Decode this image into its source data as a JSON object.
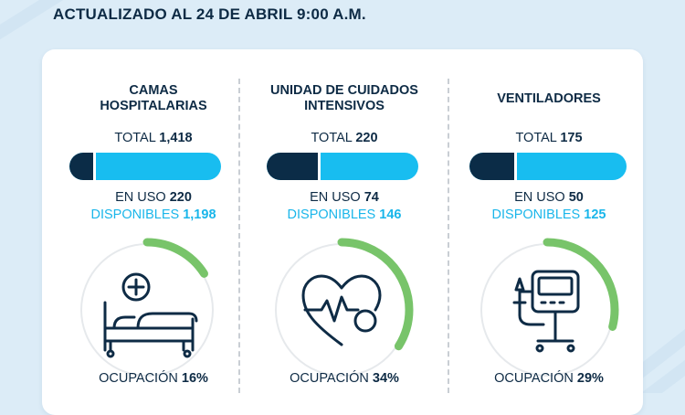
{
  "header": {
    "title": "ACTUALIZADO AL 24 DE ABRIL  9:00 A.M."
  },
  "colors": {
    "navy": "#0b2c47",
    "cyan": "#18bdf0",
    "green": "#78c46a",
    "gray": "#e6e9ec"
  },
  "columns": [
    {
      "title": "CAMAS HOSPITALARIAS",
      "total_label": "TOTAL",
      "total_value": "1,418",
      "inuse_label": "EN USO",
      "inuse_value": "220",
      "available_label": "DISPONIBLES",
      "available_value": "1,198",
      "used_fraction": 0.155,
      "occupancy_label": "OCUPACIÓN",
      "occupancy_value": "16%",
      "occupancy_fraction": 0.16,
      "icon": "hospital-bed-icon"
    },
    {
      "title": "UNIDAD DE CUIDADOS INTENSIVOS",
      "total_label": "TOTAL",
      "total_value": "220",
      "inuse_label": "EN USO",
      "inuse_value": "74",
      "available_label": "DISPONIBLES",
      "available_value": "146",
      "used_fraction": 0.336,
      "occupancy_label": "OCUPACIÓN",
      "occupancy_value": "34%",
      "occupancy_fraction": 0.34,
      "icon": "heart-pulse-icon"
    },
    {
      "title": "VENTILADORES",
      "total_label": "TOTAL",
      "total_value": "175",
      "inuse_label": "EN USO",
      "inuse_value": "50",
      "available_label": "DISPONIBLES",
      "available_value": "125",
      "used_fraction": 0.286,
      "occupancy_label": "OCUPACIÓN",
      "occupancy_value": "29%",
      "occupancy_fraction": 0.29,
      "icon": "ventilator-icon"
    }
  ]
}
